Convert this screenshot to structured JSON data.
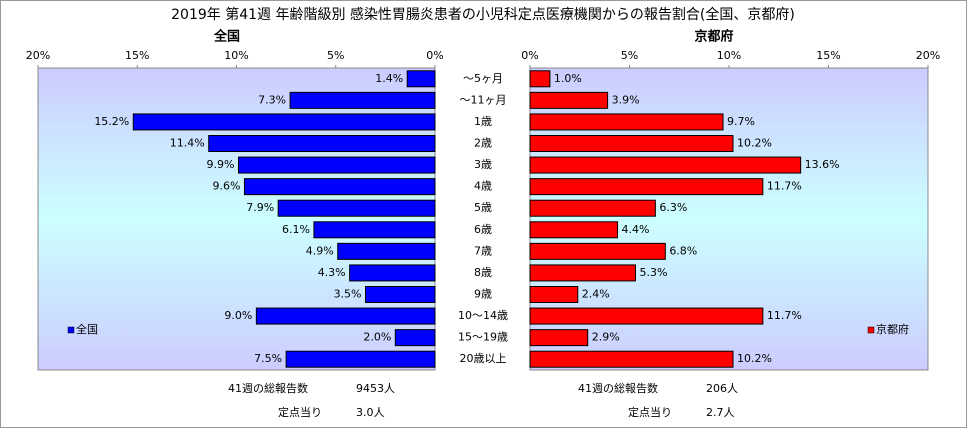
{
  "title": "2019年 第41週 年齢階級別 感染性胃腸炎患者の小児科定点医療機関からの報告割合(全国、京都府)",
  "chart_data": [
    {
      "type": "bar",
      "orientation": "horizontal",
      "title": "全国",
      "x_reversed": true,
      "categories": [
        "～5ヶ月",
        "～11ヶ月",
        "1歳",
        "2歳",
        "3歳",
        "4歳",
        "5歳",
        "6歳",
        "7歳",
        "8歳",
        "9歳",
        "10～14歳",
        "15～19歳",
        "20歳以上"
      ],
      "series": [
        {
          "name": "全国",
          "color": "#0000ff",
          "values": [
            1.4,
            7.3,
            15.2,
            11.4,
            9.9,
            9.6,
            7.9,
            6.1,
            4.9,
            4.3,
            3.5,
            9.0,
            2.0,
            7.5
          ],
          "value_labels": [
            "1.4%",
            "7.3%",
            "15.2%",
            "11.4%",
            "9.9%",
            "9.6%",
            "7.9%",
            "6.1%",
            "4.9%",
            "4.3%",
            "3.5%",
            "9.0%",
            "2.0%",
            "7.5%"
          ]
        }
      ],
      "xlim": [
        0,
        20
      ],
      "xticks": [
        {
          "value": 0,
          "label": "0%"
        },
        {
          "value": 5,
          "label": "5%"
        },
        {
          "value": 10,
          "label": "10%"
        },
        {
          "value": 15,
          "label": "15%"
        },
        {
          "value": 20,
          "label": "20%"
        }
      ],
      "legend": "lower left",
      "footer": [
        [
          "41週の総報告数",
          "9453人"
        ],
        [
          "定点当り",
          "3.0人"
        ]
      ]
    },
    {
      "type": "bar",
      "orientation": "horizontal",
      "title": "京都府",
      "x_reversed": false,
      "series": [
        {
          "name": "京都府",
          "color": "#ff0000",
          "values": [
            1.0,
            3.9,
            9.7,
            10.2,
            13.6,
            11.7,
            6.3,
            4.4,
            6.8,
            5.3,
            2.4,
            11.7,
            2.9,
            10.2
          ],
          "value_labels": [
            "1.0%",
            "3.9%",
            "9.7%",
            "10.2%",
            "13.6%",
            "11.7%",
            "6.3%",
            "4.4%",
            "6.8%",
            "5.3%",
            "2.4%",
            "11.7%",
            "2.9%",
            "10.2%"
          ]
        }
      ],
      "xlim": [
        0,
        20
      ],
      "xticks": [
        {
          "value": 0,
          "label": "0%"
        },
        {
          "value": 5,
          "label": "5%"
        },
        {
          "value": 10,
          "label": "10%"
        },
        {
          "value": 15,
          "label": "15%"
        },
        {
          "value": 20,
          "label": "20%"
        }
      ],
      "legend": "lower right",
      "footer": [
        [
          "41週の総報告数",
          "206人"
        ],
        [
          "定点当り",
          "2.7人"
        ]
      ]
    }
  ]
}
